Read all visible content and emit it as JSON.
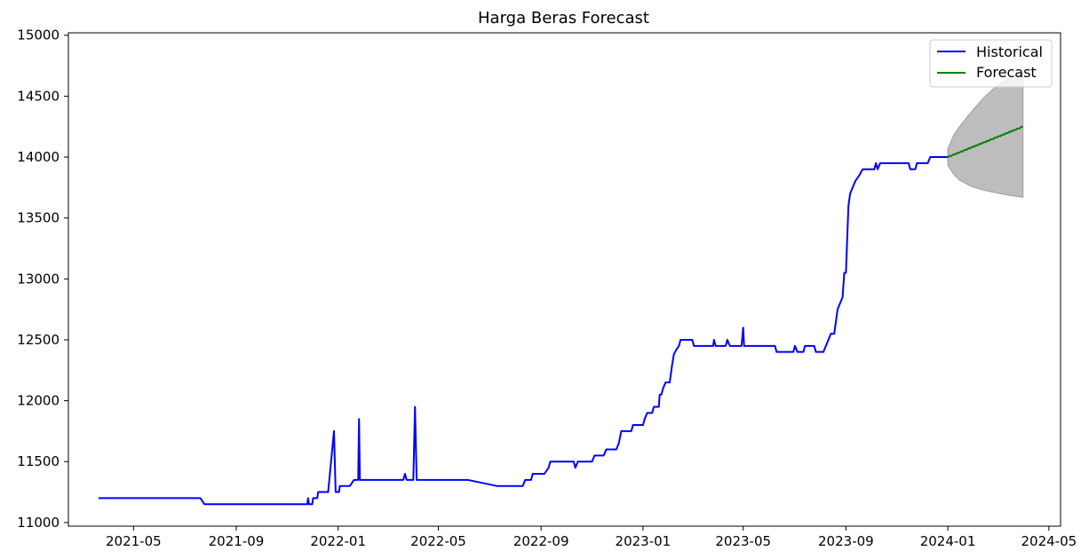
{
  "chart_data": {
    "type": "line",
    "title": "Harga Beras Forecast",
    "xlabel": "",
    "ylabel": "",
    "x_axis": "date",
    "xlim": [
      "2021-02-12",
      "2024-05-15"
    ],
    "ylim": [
      10970,
      15020
    ],
    "x_ticks": [
      {
        "value": "2021-05-01",
        "label": "2021-05"
      },
      {
        "value": "2021-09-01",
        "label": "2021-09"
      },
      {
        "value": "2022-01-01",
        "label": "2022-01"
      },
      {
        "value": "2022-05-01",
        "label": "2022-05"
      },
      {
        "value": "2022-09-01",
        "label": "2022-09"
      },
      {
        "value": "2023-01-01",
        "label": "2023-01"
      },
      {
        "value": "2023-05-01",
        "label": "2023-05"
      },
      {
        "value": "2023-09-01",
        "label": "2023-09"
      },
      {
        "value": "2024-01-01",
        "label": "2024-01"
      },
      {
        "value": "2024-05-01",
        "label": "2024-05"
      }
    ],
    "y_ticks": [
      11000,
      11500,
      12000,
      12500,
      13000,
      13500,
      14000,
      14500,
      15000
    ],
    "grid": false,
    "legend": {
      "position": "top-right",
      "entries": [
        {
          "label": "Historical",
          "color": "#0000ff"
        },
        {
          "label": "Forecast",
          "color": "#008000"
        }
      ]
    },
    "series": [
      {
        "name": "Historical",
        "color": "#0000ff",
        "points": [
          [
            "2021-03-20",
            11200
          ],
          [
            "2021-07-20",
            11200
          ],
          [
            "2021-07-25",
            11150
          ],
          [
            "2021-11-25",
            11150
          ],
          [
            "2021-11-26",
            11200
          ],
          [
            "2021-11-27",
            11150
          ],
          [
            "2021-12-01",
            11150
          ],
          [
            "2021-12-02",
            11200
          ],
          [
            "2021-12-07",
            11200
          ],
          [
            "2021-12-08",
            11250
          ],
          [
            "2021-12-20",
            11250
          ],
          [
            "2021-12-27",
            11750
          ],
          [
            "2021-12-29",
            11250
          ],
          [
            "2022-01-02",
            11250
          ],
          [
            "2022-01-03",
            11300
          ],
          [
            "2022-01-15",
            11300
          ],
          [
            "2022-01-20",
            11350
          ],
          [
            "2022-01-25",
            11350
          ],
          [
            "2022-01-26",
            11850
          ],
          [
            "2022-01-27",
            11350
          ],
          [
            "2022-03-20",
            11350
          ],
          [
            "2022-03-22",
            11400
          ],
          [
            "2022-03-24",
            11350
          ],
          [
            "2022-04-01",
            11350
          ],
          [
            "2022-04-03",
            11950
          ],
          [
            "2022-04-05",
            11350
          ],
          [
            "2022-06-05",
            11350
          ],
          [
            "2022-07-10",
            11300
          ],
          [
            "2022-08-10",
            11300
          ],
          [
            "2022-08-13",
            11350
          ],
          [
            "2022-08-20",
            11350
          ],
          [
            "2022-08-22",
            11400
          ],
          [
            "2022-09-05",
            11400
          ],
          [
            "2022-09-10",
            11450
          ],
          [
            "2022-09-12",
            11500
          ],
          [
            "2022-10-10",
            11500
          ],
          [
            "2022-10-12",
            11450
          ],
          [
            "2022-10-15",
            11500
          ],
          [
            "2022-11-01",
            11500
          ],
          [
            "2022-11-04",
            11550
          ],
          [
            "2022-11-15",
            11550
          ],
          [
            "2022-11-18",
            11600
          ],
          [
            "2022-11-30",
            11600
          ],
          [
            "2022-12-03",
            11650
          ],
          [
            "2022-12-06",
            11750
          ],
          [
            "2022-12-18",
            11750
          ],
          [
            "2022-12-20",
            11800
          ],
          [
            "2023-01-01",
            11800
          ],
          [
            "2023-01-03",
            11850
          ],
          [
            "2023-01-06",
            11900
          ],
          [
            "2023-01-12",
            11900
          ],
          [
            "2023-01-14",
            11950
          ],
          [
            "2023-01-20",
            11950
          ],
          [
            "2023-01-21",
            12050
          ],
          [
            "2023-01-23",
            12050
          ],
          [
            "2023-01-25",
            12100
          ],
          [
            "2023-01-28",
            12150
          ],
          [
            "2023-02-02",
            12150
          ],
          [
            "2023-02-05",
            12300
          ],
          [
            "2023-02-07",
            12380
          ],
          [
            "2023-02-10",
            12420
          ],
          [
            "2023-02-13",
            12450
          ],
          [
            "2023-02-15",
            12500
          ],
          [
            "2023-03-01",
            12500
          ],
          [
            "2023-03-03",
            12450
          ],
          [
            "2023-03-26",
            12450
          ],
          [
            "2023-03-27",
            12500
          ],
          [
            "2023-03-29",
            12450
          ],
          [
            "2023-04-10",
            12450
          ],
          [
            "2023-04-12",
            12500
          ],
          [
            "2023-04-15",
            12450
          ],
          [
            "2023-04-29",
            12450
          ],
          [
            "2023-05-01",
            12600
          ],
          [
            "2023-05-02",
            12450
          ],
          [
            "2023-06-08",
            12450
          ],
          [
            "2023-06-10",
            12400
          ],
          [
            "2023-06-30",
            12400
          ],
          [
            "2023-07-02",
            12450
          ],
          [
            "2023-07-05",
            12400
          ],
          [
            "2023-07-12",
            12400
          ],
          [
            "2023-07-14",
            12450
          ],
          [
            "2023-07-25",
            12450
          ],
          [
            "2023-07-27",
            12400
          ],
          [
            "2023-08-05",
            12400
          ],
          [
            "2023-08-08",
            12450
          ],
          [
            "2023-08-11",
            12500
          ],
          [
            "2023-08-14",
            12550
          ],
          [
            "2023-08-18",
            12550
          ],
          [
            "2023-08-22",
            12750
          ],
          [
            "2023-08-25",
            12800
          ],
          [
            "2023-08-28",
            12850
          ],
          [
            "2023-08-30",
            13050
          ],
          [
            "2023-09-01",
            13050
          ],
          [
            "2023-09-04",
            13600
          ],
          [
            "2023-09-06",
            13700
          ],
          [
            "2023-09-09",
            13750
          ],
          [
            "2023-09-12",
            13800
          ],
          [
            "2023-09-17",
            13850
          ],
          [
            "2023-09-21",
            13900
          ],
          [
            "2023-10-05",
            13900
          ],
          [
            "2023-10-07",
            13950
          ],
          [
            "2023-10-09",
            13900
          ],
          [
            "2023-10-12",
            13950
          ],
          [
            "2023-11-15",
            13950
          ],
          [
            "2023-11-17",
            13900
          ],
          [
            "2023-11-23",
            13900
          ],
          [
            "2023-11-25",
            13950
          ],
          [
            "2023-12-08",
            13950
          ],
          [
            "2023-12-11",
            14000
          ],
          [
            "2024-01-01",
            14000
          ]
        ]
      },
      {
        "name": "Forecast",
        "color": "#008000",
        "x_start": "2024-01-01",
        "x_end": "2024-03-31",
        "y_start": 14000,
        "y_end": 14250
      }
    ],
    "confidence_band": {
      "color": "#bdbdbd",
      "x": [
        "2024-01-01",
        "2024-01-08",
        "2024-01-15",
        "2024-01-29",
        "2024-02-12",
        "2024-02-26",
        "2024-03-11",
        "2024-03-31"
      ],
      "upper": [
        14070,
        14180,
        14250,
        14370,
        14480,
        14570,
        14640,
        14700
      ],
      "lower": [
        13930,
        13860,
        13810,
        13760,
        13730,
        13710,
        13690,
        13670
      ]
    }
  }
}
